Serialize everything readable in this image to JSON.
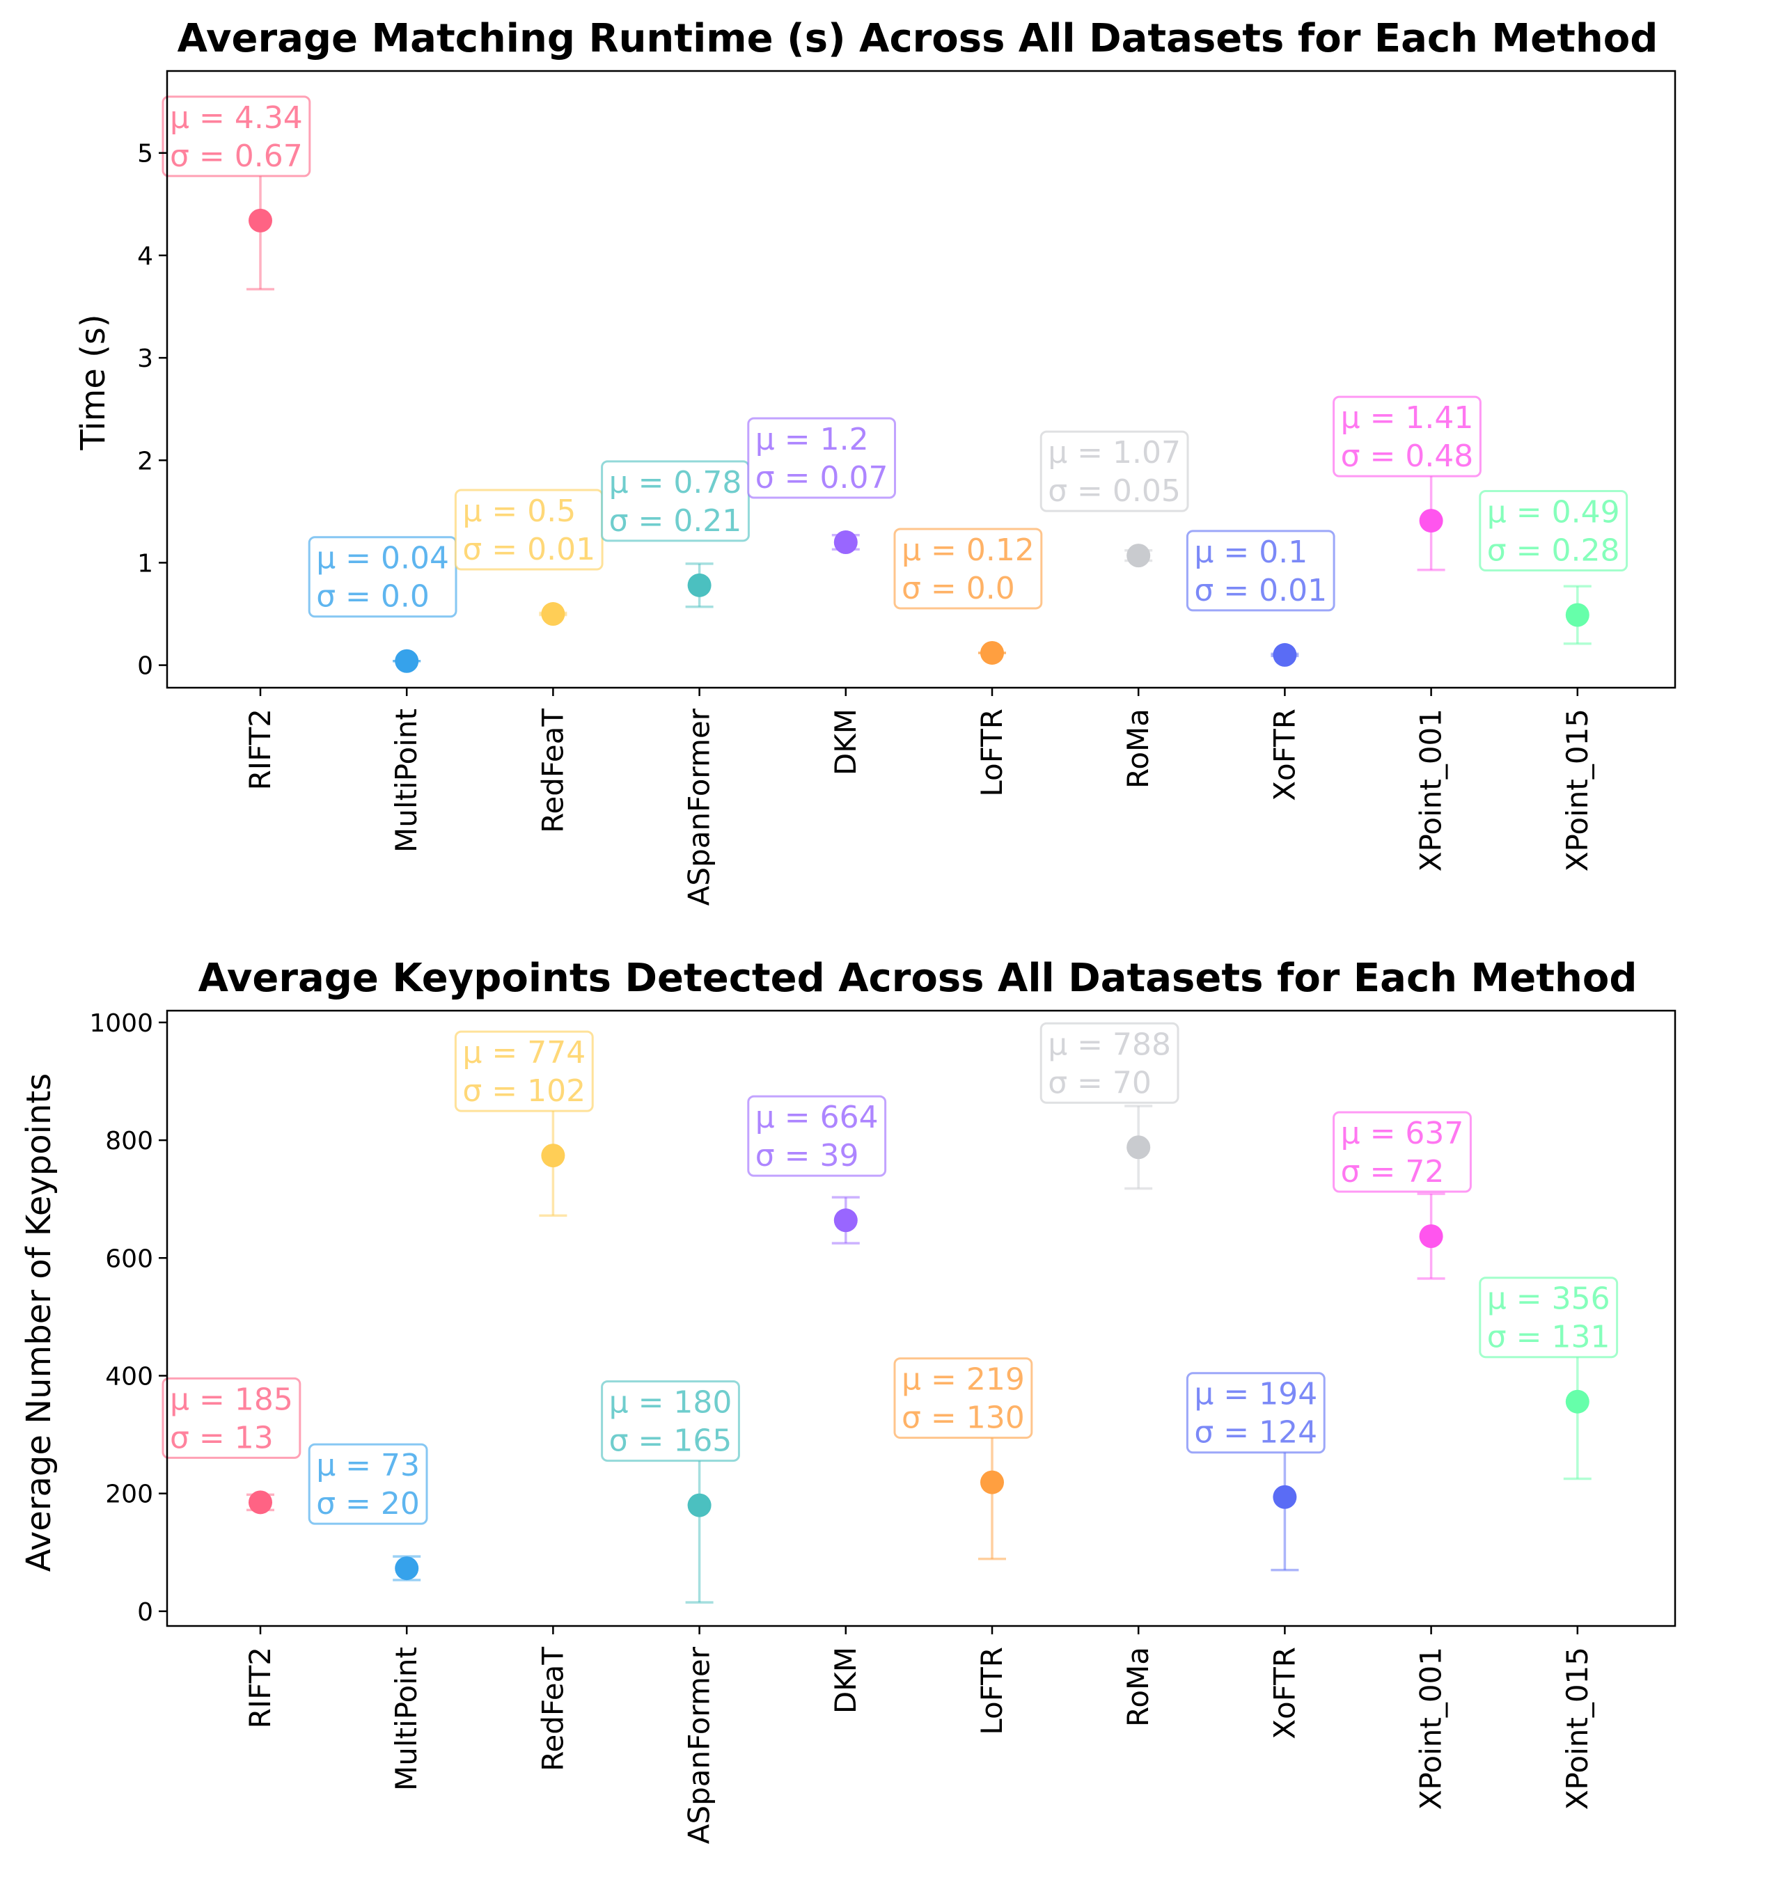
{
  "chart_data": [
    {
      "type": "scatter",
      "title": "Average Matching Runtime (s) Across All Datasets for Each Method",
      "xlabel": "",
      "ylabel": "Time (s)",
      "ylim": [
        -0.22,
        5.8
      ],
      "yticks": [
        0,
        1,
        2,
        3,
        4,
        5
      ],
      "categories": [
        "RIFT2",
        "MultiPoint",
        "RedFeaT",
        "ASpanFormer",
        "DKM",
        "LoFTR",
        "RoMa",
        "XoFTR",
        "XPoint_001",
        "XPoint_015"
      ],
      "mean": [
        4.34,
        0.04,
        0.5,
        0.78,
        1.2,
        0.12,
        1.07,
        0.1,
        1.41,
        0.49
      ],
      "std": [
        0.67,
        0.0,
        0.01,
        0.21,
        0.07,
        0.0,
        0.05,
        0.01,
        0.48,
        0.28
      ],
      "labels": [
        [
          "μ = 4.34",
          "σ = 0.67"
        ],
        [
          "μ = 0.04",
          "σ = 0.0"
        ],
        [
          "μ = 0.5",
          "σ = 0.01"
        ],
        [
          "μ = 0.78",
          "σ = 0.21"
        ],
        [
          "μ = 1.2",
          "σ = 0.07"
        ],
        [
          "μ = 0.12",
          "σ = 0.0"
        ],
        [
          "μ = 1.07",
          "σ = 0.05"
        ],
        [
          "μ = 0.1",
          "σ = 0.01"
        ],
        [
          "μ = 1.41",
          "σ = 0.48"
        ],
        [
          "μ = 0.49",
          "σ = 0.28"
        ]
      ],
      "grid": false
    },
    {
      "type": "scatter",
      "title": "Average Keypoints Detected Across All Datasets for Each Method",
      "xlabel": "",
      "ylabel": "Average Number of Keypoints",
      "ylim": [
        -25,
        1020
      ],
      "yticks": [
        0,
        200,
        400,
        600,
        800,
        1000
      ],
      "categories": [
        "RIFT2",
        "MultiPoint",
        "RedFeaT",
        "ASpanFormer",
        "DKM",
        "LoFTR",
        "RoMa",
        "XoFTR",
        "XPoint_001",
        "XPoint_015"
      ],
      "mean": [
        185,
        73,
        774,
        180,
        664,
        219,
        788,
        194,
        637,
        356
      ],
      "std": [
        13,
        20,
        102,
        165,
        39,
        130,
        70,
        124,
        72,
        131
      ],
      "labels": [
        [
          "μ = 185",
          "σ = 13"
        ],
        [
          "μ = 73",
          "σ = 20"
        ],
        [
          "μ = 774",
          "σ = 102"
        ],
        [
          "μ = 180",
          "σ = 165"
        ],
        [
          "μ = 664",
          "σ = 39"
        ],
        [
          "μ = 219",
          "σ = 130"
        ],
        [
          "μ = 788",
          "σ = 70"
        ],
        [
          "μ = 194",
          "σ = 124"
        ],
        [
          "μ = 637",
          "σ = 72"
        ],
        [
          "μ = 356",
          "σ = 131"
        ]
      ],
      "grid": false
    }
  ],
  "colors": [
    "#ff6384",
    "#36a2eb",
    "#ffce56",
    "#4bc0c0",
    "#9966ff",
    "#ff9f40",
    "#c9cbcf",
    "#5a6cf5",
    "#ff55ee",
    "#66ffaa"
  ]
}
